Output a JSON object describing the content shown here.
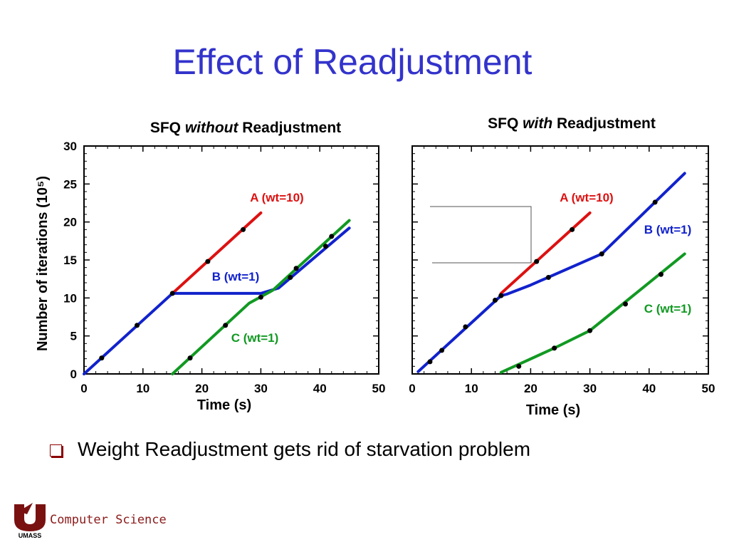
{
  "slide": {
    "title": "Effect of Readjustment",
    "bullet": "Weight Readjustment gets rid of starvation problem",
    "footer_logo_text": "UMASS",
    "footer": "Computer Science"
  },
  "colors": {
    "title": "#3333cc",
    "A": "#dd1111",
    "B": "#1122cc",
    "C": "#119922",
    "marker": "#000000"
  },
  "chart_data": [
    {
      "type": "line",
      "title_parts": [
        "SFQ ",
        "without",
        " Readjustment"
      ],
      "xlabel": "Time (s)",
      "ylabel": "Number of iterations (10⁵)",
      "xlim": [
        0,
        50
      ],
      "ylim": [
        0,
        30
      ],
      "xticks": [
        0,
        10,
        20,
        30,
        40,
        50
      ],
      "yticks": [
        0,
        5,
        10,
        15,
        20,
        25,
        30
      ],
      "series": [
        {
          "name": "A (wt=10)",
          "color": "#dd1111",
          "points": [
            [
              15,
              10.6
            ],
            [
              30,
              21.2
            ]
          ],
          "markers": [
            [
              21,
              14.8
            ],
            [
              27,
              19.0
            ]
          ]
        },
        {
          "name": "B (wt=1)",
          "color": "#1122cc",
          "points": [
            [
              0,
              0
            ],
            [
              15,
              10.6
            ],
            [
              30,
              10.6
            ],
            [
              33,
              11.3
            ],
            [
              45,
              19.2
            ]
          ],
          "markers": [
            [
              3,
              2.1
            ],
            [
              9,
              6.4
            ],
            [
              15,
              10.6
            ],
            [
              30,
              10.1
            ],
            [
              35,
              12.7
            ],
            [
              41,
              16.8
            ]
          ]
        },
        {
          "name": "C (wt=1)",
          "color": "#119922",
          "points": [
            [
              15,
              0
            ],
            [
              28,
              9.3
            ],
            [
              32,
              11.0
            ],
            [
              45,
              20.2
            ]
          ],
          "markers": [
            [
              18,
              2.1
            ],
            [
              24,
              6.4
            ],
            [
              36,
              13.9
            ],
            [
              42,
              18.1
            ]
          ]
        }
      ]
    },
    {
      "type": "line",
      "title_parts": [
        "SFQ ",
        "with",
        " Readjustment"
      ],
      "xlabel": "Time (s)",
      "ylabel": "",
      "xlim": [
        0,
        50
      ],
      "ylim": [
        0,
        30
      ],
      "xticks": [
        0,
        10,
        20,
        30,
        40,
        50
      ],
      "yticks": [],
      "series": [
        {
          "name": "A (wt=10)",
          "color": "#dd1111",
          "points": [
            [
              15,
              10.6
            ],
            [
              30,
              21.2
            ]
          ],
          "markers": [
            [
              21,
              14.8
            ],
            [
              27,
              19.0
            ]
          ]
        },
        {
          "name": "B (wt=1)",
          "color": "#1122cc",
          "points": [
            [
              1,
              0.3
            ],
            [
              15,
              10.3
            ],
            [
              16,
              10.5
            ],
            [
              20,
              11.7
            ],
            [
              32,
              15.8
            ],
            [
              46,
              26.4
            ]
          ],
          "markers": [
            [
              3,
              1.6
            ],
            [
              5,
              3.1
            ],
            [
              9,
              6.2
            ],
            [
              14,
              9.7
            ],
            [
              15,
              10.3
            ],
            [
              23,
              12.7
            ],
            [
              32,
              15.8
            ],
            [
              41,
              22.6
            ]
          ]
        },
        {
          "name": "C (wt=1)",
          "color": "#119922",
          "points": [
            [
              15,
              0.2
            ],
            [
              24,
              3.4
            ],
            [
              30,
              5.7
            ],
            [
              46,
              15.8
            ]
          ],
          "markers": [
            [
              18,
              1.0
            ],
            [
              24,
              3.4
            ],
            [
              30,
              5.7
            ],
            [
              36,
              9.2
            ],
            [
              42,
              13.1
            ]
          ]
        }
      ]
    }
  ]
}
